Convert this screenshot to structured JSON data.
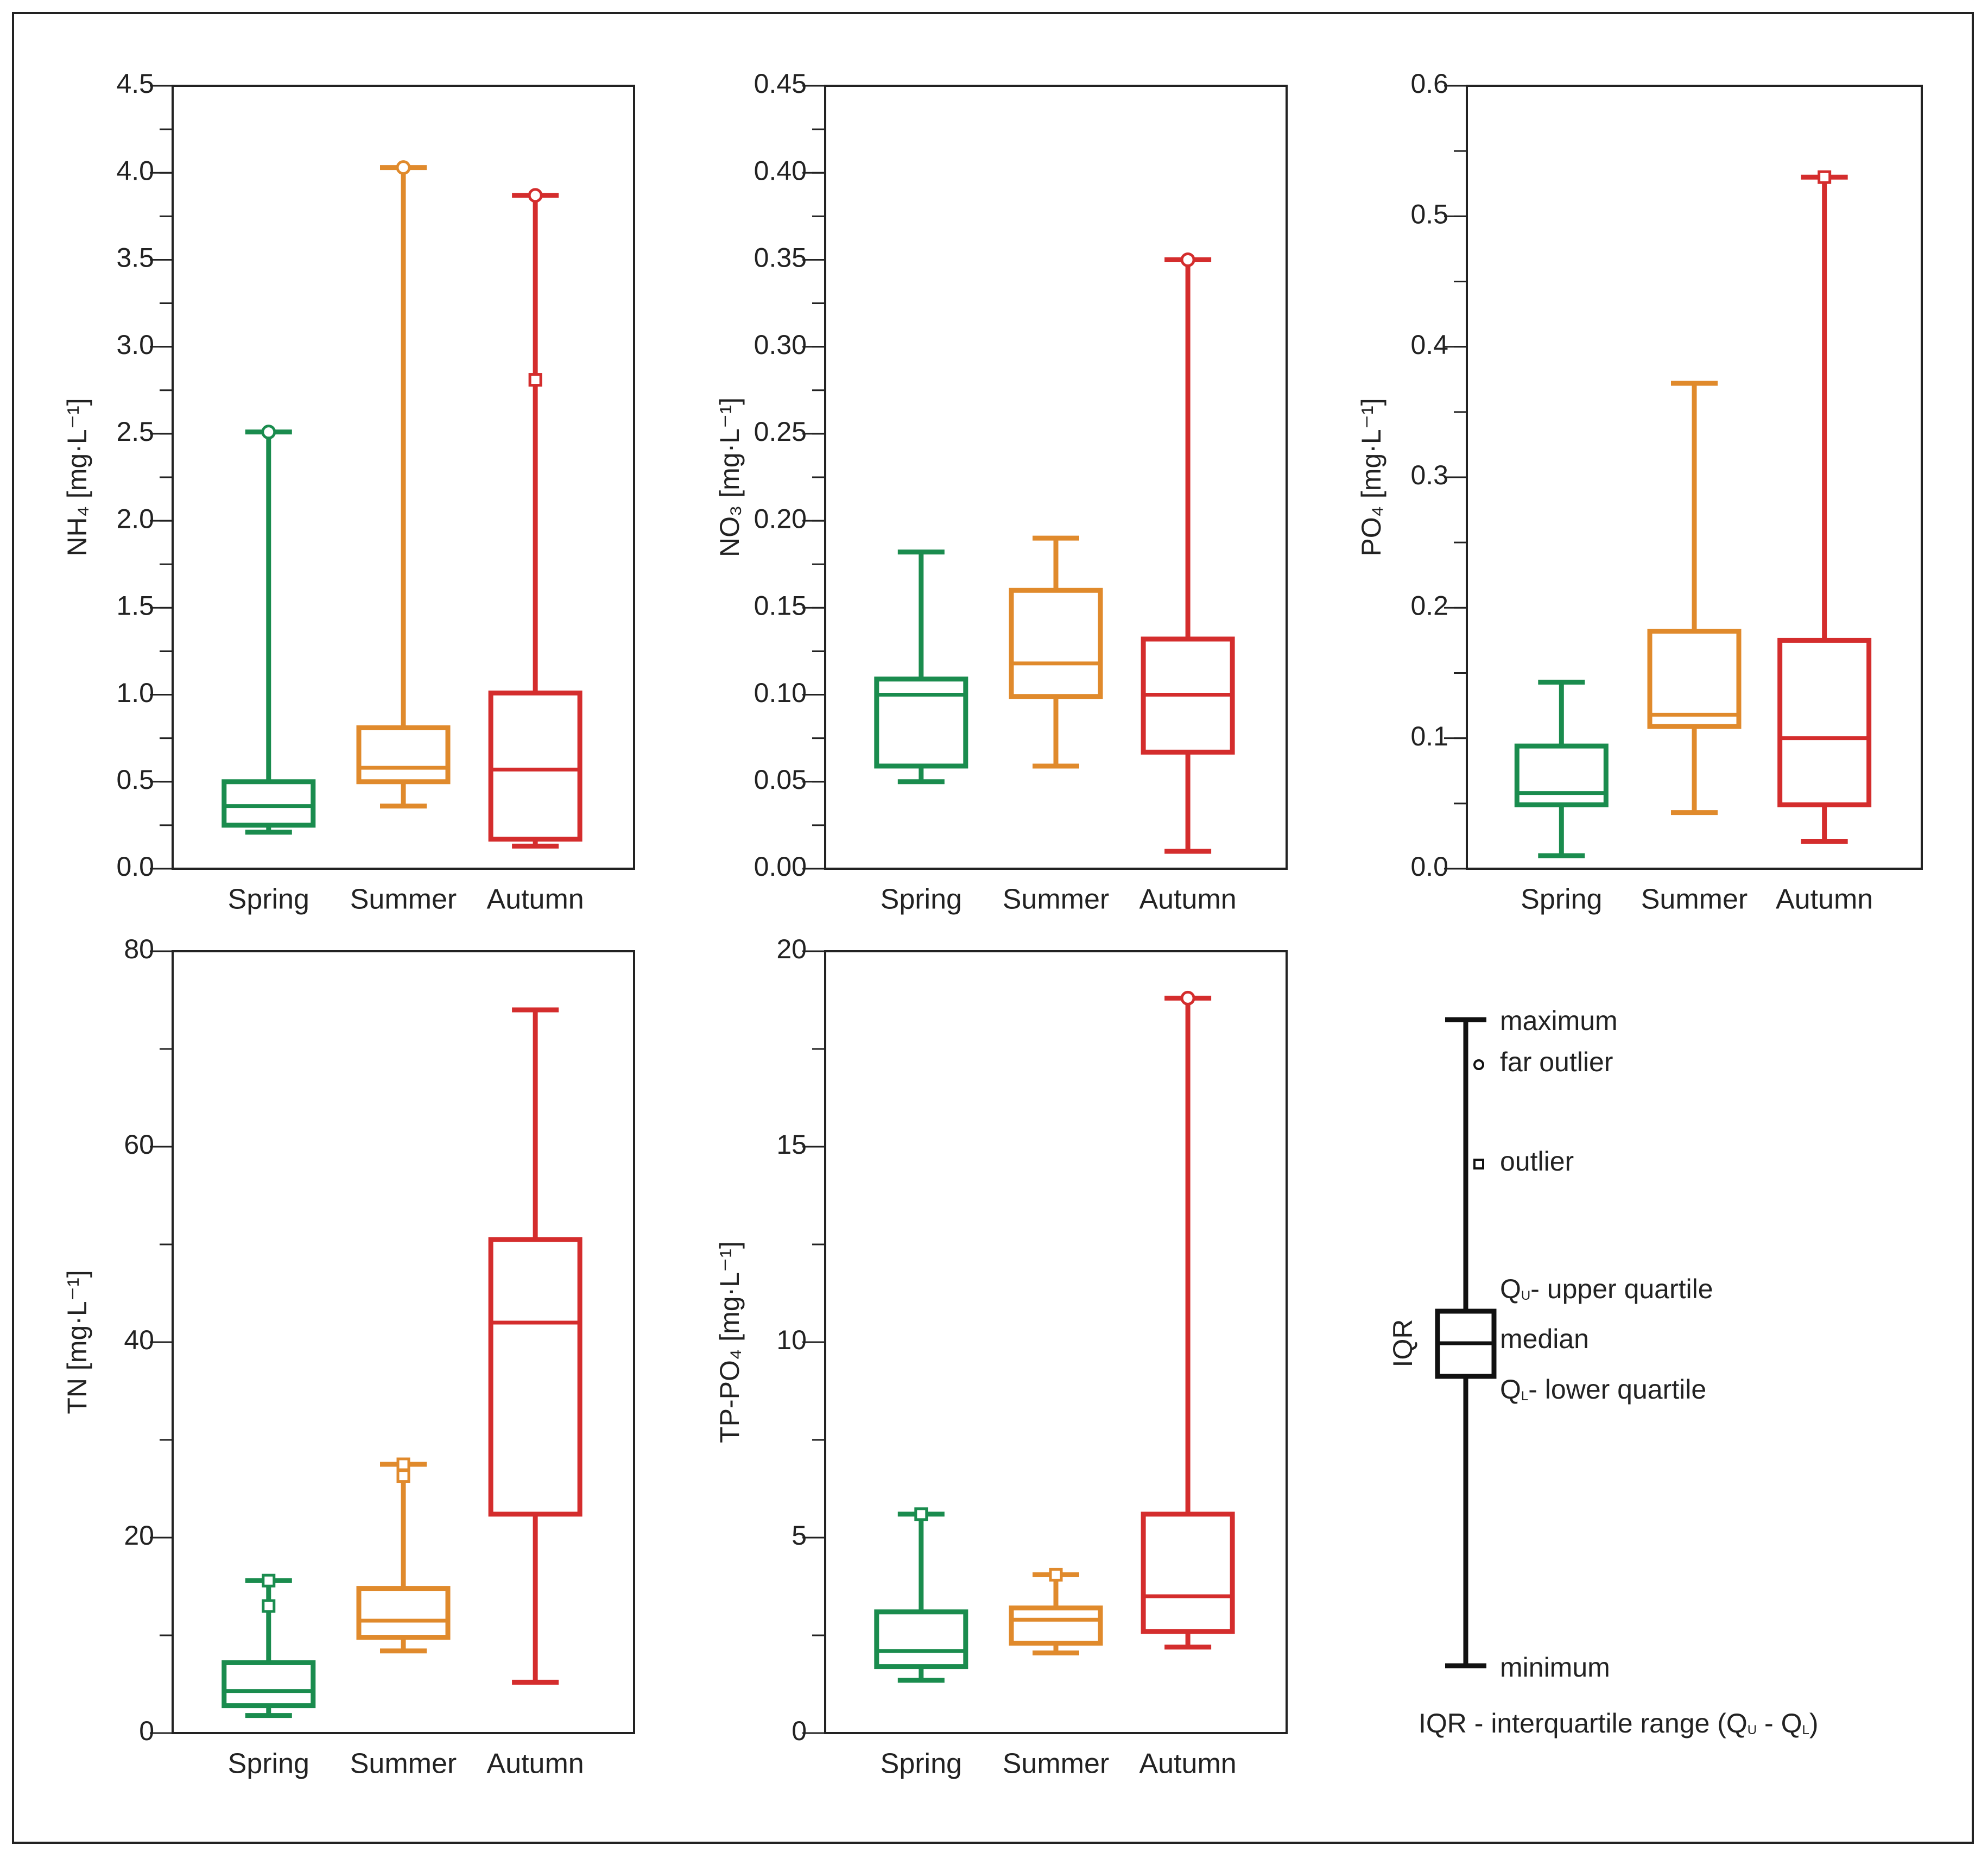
{
  "style": {
    "season_colors": {
      "Spring": "#1a8c4e",
      "Summer": "#e08a2c",
      "Autumn": "#d42d2d"
    },
    "axis_color": "#222222",
    "legend_color": "#111111"
  },
  "chart_data": [
    {
      "id": "nh4",
      "type": "box",
      "ylabel": "NH₄ [mg·L⁻¹]",
      "ylim": [
        0,
        4.5
      ],
      "major_ticks": [
        0,
        0.5,
        1.0,
        1.5,
        2.0,
        2.5,
        3.0,
        3.5,
        4.0,
        4.5
      ],
      "tick_labels": [
        "0.0",
        "0.5",
        "1.0",
        "1.5",
        "2.0",
        "2.5",
        "3.0",
        "3.5",
        "4.0",
        "4.5"
      ],
      "minor_step": 0.25,
      "categories": [
        "Spring",
        "Summer",
        "Autumn"
      ],
      "boxes": [
        {
          "min": 0.21,
          "q1": 0.25,
          "median": 0.36,
          "q3": 0.5,
          "max": 2.51,
          "far_outliers": [
            2.51
          ],
          "outliers": []
        },
        {
          "min": 0.36,
          "q1": 0.5,
          "median": 0.58,
          "q3": 0.81,
          "max": 4.03,
          "far_outliers": [
            4.03
          ],
          "outliers": []
        },
        {
          "min": 0.13,
          "q1": 0.17,
          "median": 0.57,
          "q3": 1.01,
          "max": 3.87,
          "far_outliers": [
            3.87
          ],
          "outliers": [
            2.81
          ]
        }
      ]
    },
    {
      "id": "no3",
      "type": "box",
      "ylabel": "NO₃ [mg·L⁻¹]",
      "ylim": [
        0,
        0.45
      ],
      "major_ticks": [
        0,
        0.05,
        0.1,
        0.15,
        0.2,
        0.25,
        0.3,
        0.35,
        0.4,
        0.45
      ],
      "tick_labels": [
        "0.00",
        "0.05",
        "0.10",
        "0.15",
        "0.20",
        "0.25",
        "0.30",
        "0.35",
        "0.40",
        "0.45"
      ],
      "minor_step": 0.025,
      "categories": [
        "Spring",
        "Summer",
        "Autumn"
      ],
      "boxes": [
        {
          "min": 0.05,
          "q1": 0.059,
          "median": 0.1,
          "q3": 0.109,
          "max": 0.182,
          "far_outliers": [],
          "outliers": []
        },
        {
          "min": 0.059,
          "q1": 0.099,
          "median": 0.118,
          "q3": 0.16,
          "max": 0.19,
          "far_outliers": [],
          "outliers": []
        },
        {
          "min": 0.01,
          "q1": 0.067,
          "median": 0.1,
          "q3": 0.132,
          "max": 0.35,
          "far_outliers": [
            0.35
          ],
          "outliers": []
        }
      ]
    },
    {
      "id": "po4",
      "type": "box",
      "ylabel": "PO₄ [mg·L⁻¹]",
      "ylim": [
        0,
        0.6
      ],
      "major_ticks": [
        0,
        0.1,
        0.2,
        0.3,
        0.4,
        0.5,
        0.6
      ],
      "tick_labels": [
        "0.0",
        "0.1",
        "0.2",
        "0.3",
        "0.4",
        "0.5",
        "0.6"
      ],
      "minor_step": 0.05,
      "categories": [
        "Spring",
        "Summer",
        "Autumn"
      ],
      "boxes": [
        {
          "min": 0.01,
          "q1": 0.049,
          "median": 0.058,
          "q3": 0.094,
          "max": 0.143,
          "far_outliers": [],
          "outliers": []
        },
        {
          "min": 0.043,
          "q1": 0.109,
          "median": 0.118,
          "q3": 0.182,
          "max": 0.372,
          "far_outliers": [],
          "outliers": []
        },
        {
          "min": 0.021,
          "q1": 0.049,
          "median": 0.1,
          "q3": 0.175,
          "max": 0.53,
          "far_outliers": [],
          "outliers": [
            0.53
          ]
        }
      ]
    },
    {
      "id": "tn",
      "type": "box",
      "ylabel": "TN [mg·L⁻¹]",
      "ylim": [
        0,
        80
      ],
      "major_ticks": [
        0,
        20,
        40,
        60,
        80
      ],
      "tick_labels": [
        "0",
        "20",
        "40",
        "60",
        "80"
      ],
      "minor_step": 10,
      "categories": [
        "Spring",
        "Summer",
        "Autumn"
      ],
      "boxes": [
        {
          "min": 1.8,
          "q1": 2.8,
          "median": 4.3,
          "q3": 7.2,
          "max": 15.6,
          "far_outliers": [],
          "outliers": [
            15.6,
            13.0
          ]
        },
        {
          "min": 8.4,
          "q1": 9.8,
          "median": 11.5,
          "q3": 14.8,
          "max": 27.5,
          "far_outliers": [],
          "outliers": [
            27.5,
            26.3
          ]
        },
        {
          "min": 5.2,
          "q1": 22.4,
          "median": 42.0,
          "q3": 50.5,
          "max": 74.0,
          "far_outliers": [],
          "outliers": []
        }
      ]
    },
    {
      "id": "tppo4",
      "type": "box",
      "ylabel": "TP-PO₄ [mg·L⁻¹]",
      "ylim": [
        0,
        20
      ],
      "major_ticks": [
        0,
        5,
        10,
        15,
        20
      ],
      "tick_labels": [
        "0",
        "5",
        "10",
        "15",
        "20"
      ],
      "minor_step": 2.5,
      "categories": [
        "Spring",
        "Summer",
        "Autumn"
      ],
      "boxes": [
        {
          "min": 1.35,
          "q1": 1.7,
          "median": 2.1,
          "q3": 3.1,
          "max": 5.6,
          "far_outliers": [],
          "outliers": [
            5.6
          ]
        },
        {
          "min": 2.05,
          "q1": 2.3,
          "median": 2.9,
          "q3": 3.2,
          "max": 4.05,
          "far_outliers": [],
          "outliers": [
            4.05
          ]
        },
        {
          "min": 2.2,
          "q1": 2.6,
          "median": 3.5,
          "q3": 5.6,
          "max": 18.8,
          "far_outliers": [
            18.8
          ],
          "outliers": []
        }
      ]
    }
  ],
  "legend": {
    "maximum": "maximum",
    "far_outlier": "far outlier",
    "outlier": "outlier",
    "upper_quartile_symbol": "Q",
    "upper_quartile_sub": "U",
    "upper_quartile_text": "- upper quartile",
    "median": "median",
    "lower_quartile_symbol": "Q",
    "lower_quartile_sub": "L",
    "lower_quartile_text": "- lower quartile",
    "minimum": "minimum",
    "iqr": "IQR",
    "iqr_def_prefix": "IQR - interquartile range (Q",
    "iqr_def_sub1": "U",
    "iqr_def_mid": " - Q",
    "iqr_def_sub2": "L",
    "iqr_def_suffix": ")"
  }
}
